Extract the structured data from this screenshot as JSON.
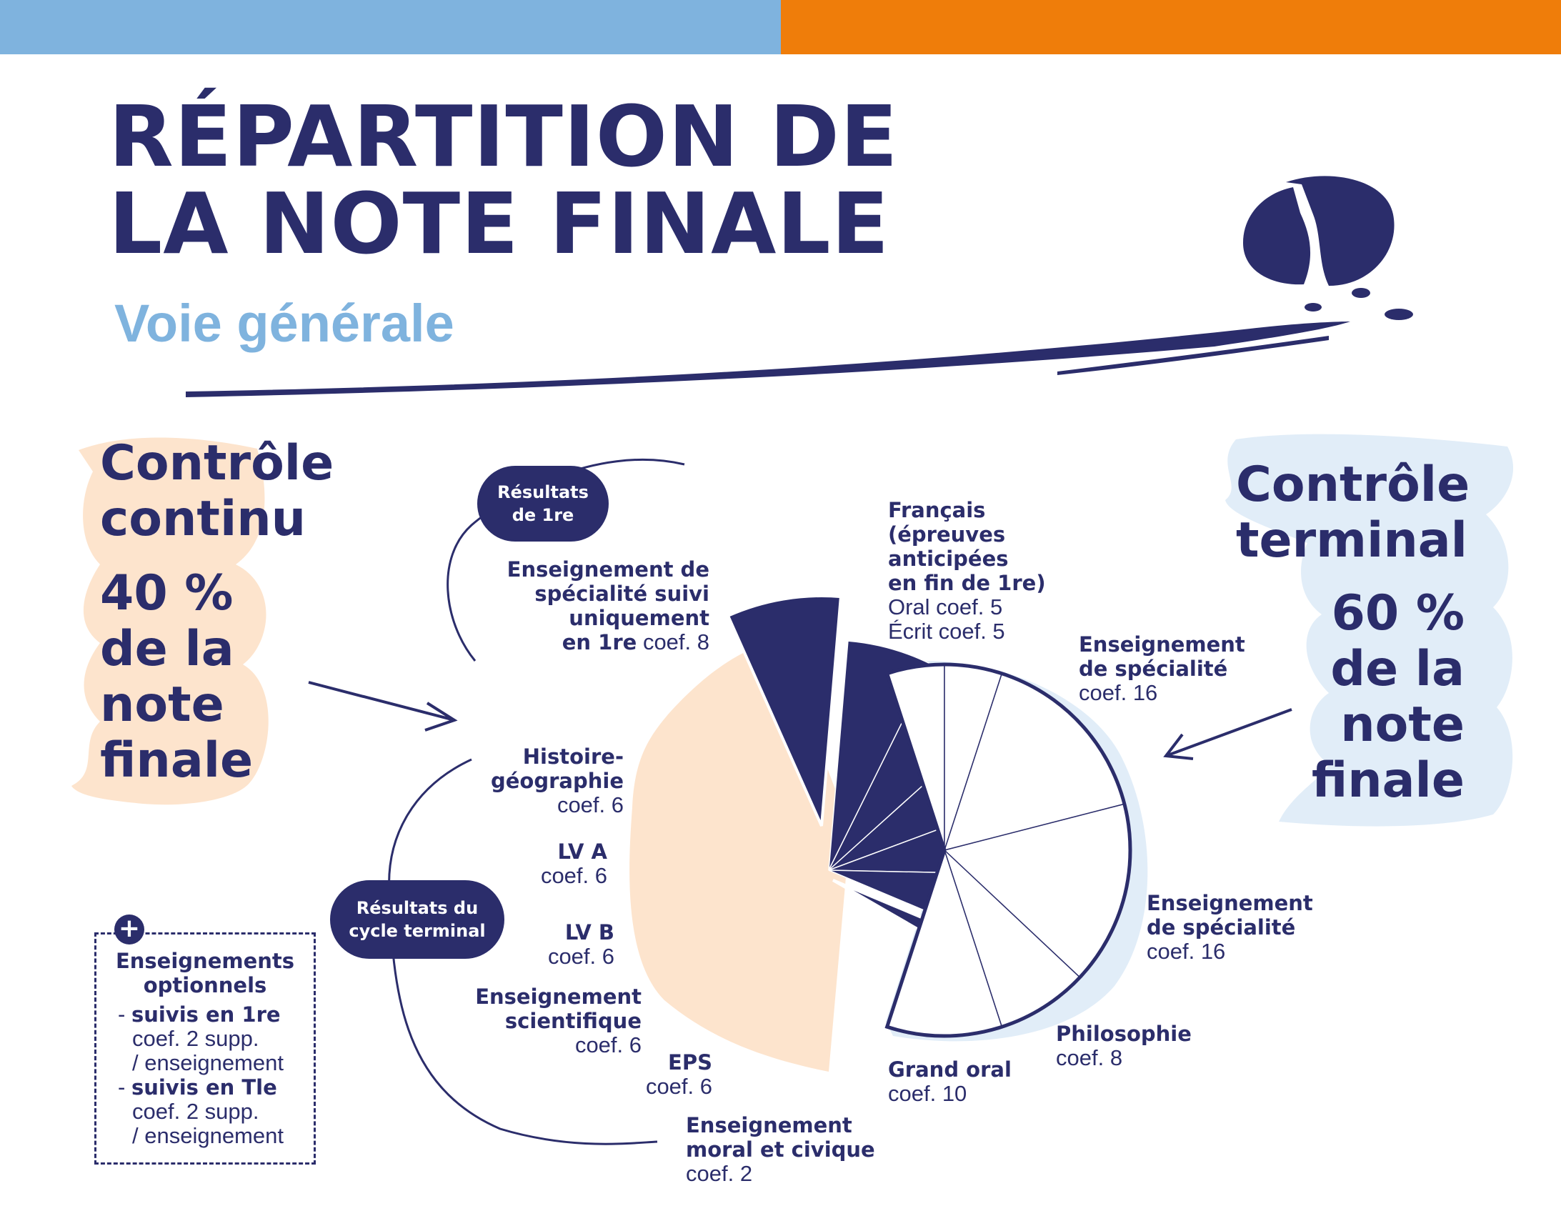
{
  "colors": {
    "navy": "#2b2d6b",
    "light_blue": "#7fb3de",
    "orange": "#ef7d0a",
    "peach": "#fde4cd",
    "pale_blue": "#e1edf8"
  },
  "header": {
    "title_line1": "RÉPARTITION DE",
    "title_line2": "LA NOTE FINALE",
    "subtitle": "Voie générale"
  },
  "controle_continu": {
    "heading_line1": "Contrôle",
    "heading_line2": "continu",
    "pct_line1": "40 %",
    "pct_line2": "de la",
    "pct_line3": "note",
    "pct_line4": "finale",
    "share_pct": 40
  },
  "controle_terminal": {
    "heading_line1": "Contrôle",
    "heading_line2": "terminal",
    "pct_line1": "60 %",
    "pct_line2": "de la",
    "pct_line3": "note",
    "pct_line4": "finale",
    "share_pct": 60
  },
  "pills": {
    "resultats_1re_line1": "Résultats",
    "resultats_1re_line2": "de 1re",
    "cycle_line1": "Résultats du",
    "cycle_line2": "cycle terminal"
  },
  "left_labels": {
    "spe1": {
      "l1": "Enseignement de",
      "l2": "spécialité suivi",
      "l3": "uniquement",
      "l4": "en 1re",
      "coef": "coef. 8"
    },
    "hg": {
      "l1": "Histoire-",
      "l2": "géographie",
      "coef": "coef. 6"
    },
    "lva": {
      "l1": "LV A",
      "coef": "coef. 6"
    },
    "lvb": {
      "l1": "LV B",
      "coef": "coef. 6"
    },
    "sci": {
      "l1": "Enseignement",
      "l2": "scientifique",
      "coef": "coef. 6"
    },
    "eps": {
      "l1": "EPS",
      "coef": "coef. 6"
    },
    "emc": {
      "l1": "Enseignement",
      "l2": "moral et civique",
      "coef": "coef. 2"
    }
  },
  "right_labels": {
    "francais": {
      "l1": "Français",
      "l2": "(épreuves",
      "l3": "anticipées",
      "l4": "en fin de 1re)",
      "oral": "Oral coef. 5",
      "ecrit": "Écrit coef. 5"
    },
    "spe_a": {
      "l1": "Enseignement",
      "l2": "de spécialité",
      "coef": "coef. 16"
    },
    "spe_b": {
      "l1": "Enseignement",
      "l2": "de spécialité",
      "coef": "coef. 16"
    },
    "philo": {
      "l1": "Philosophie",
      "coef": "coef. 8"
    },
    "grand_oral": {
      "l1": "Grand oral",
      "coef": "coef. 10"
    }
  },
  "options": {
    "plus": "+",
    "title_line1": "Enseignements",
    "title_line2": "optionnels",
    "item1_title": "suivis en 1re",
    "item1_l2": "coef. 2 supp.",
    "item1_l3": "/ enseignement",
    "item2_title": "suivis en Tle",
    "item2_l2": "coef. 2 supp.",
    "item2_l3": "/ enseignement"
  },
  "chart_data": {
    "type": "pie",
    "title": "RÉPARTITION DE LA NOTE FINALE",
    "series": [
      {
        "name": "Contrôle continu",
        "share_pct": 40,
        "categories": [
          "Enseignement de spécialité suivi uniquement en 1re",
          "Histoire-géographie",
          "LV A",
          "LV B",
          "Enseignement scientifique",
          "EPS",
          "Enseignement moral et civique"
        ],
        "values": [
          8,
          6,
          6,
          6,
          6,
          6,
          2
        ]
      },
      {
        "name": "Contrôle terminal",
        "share_pct": 60,
        "categories": [
          "Français (épreuves anticipées en fin de 1re) Oral",
          "Français (épreuves anticipées en fin de 1re) Écrit",
          "Enseignement de spécialité",
          "Enseignement de spécialité",
          "Philosophie",
          "Grand oral"
        ],
        "values": [
          5,
          5,
          16,
          16,
          8,
          10
        ]
      }
    ],
    "legend": "none"
  }
}
